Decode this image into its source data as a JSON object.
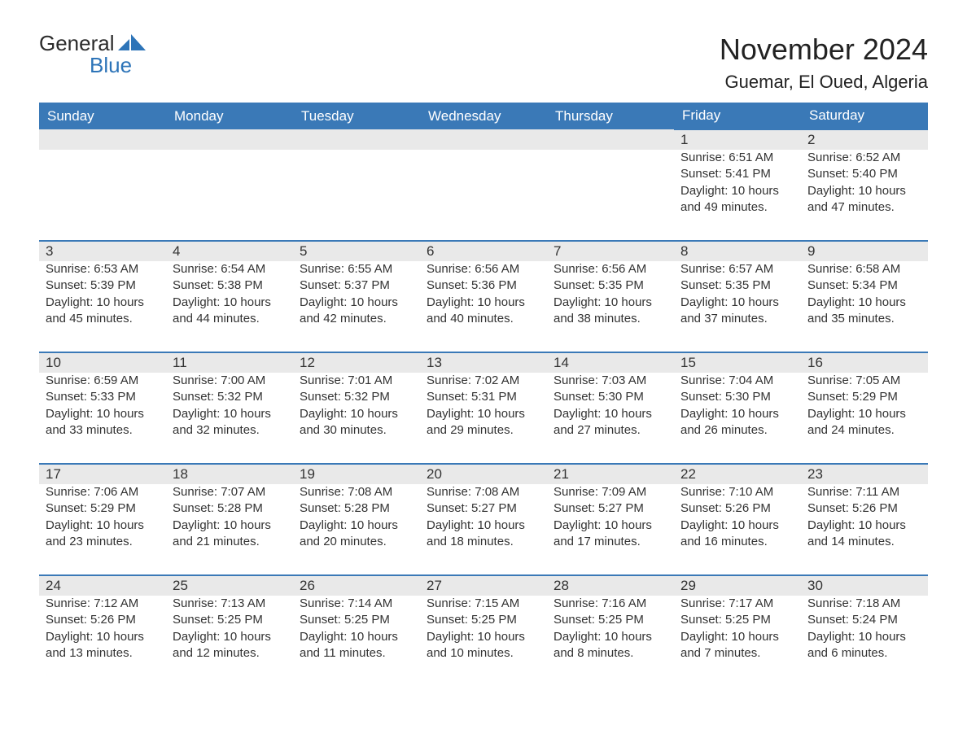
{
  "logo": {
    "text1": "General",
    "text2": "Blue",
    "mark_color": "#2d74b8"
  },
  "title": "November 2024",
  "location": "Guemar, El Oued, Algeria",
  "colors": {
    "header_bg": "#3a79b7",
    "header_text": "#ffffff",
    "daynum_bg": "#e9e9e9",
    "row_divider": "#3a79b7",
    "body_text": "#333333",
    "background": "#ffffff"
  },
  "typography": {
    "title_fontsize": 36,
    "location_fontsize": 22,
    "weekday_fontsize": 17,
    "daynum_fontsize": 17,
    "cell_fontsize": 15
  },
  "weekdays": [
    "Sunday",
    "Monday",
    "Tuesday",
    "Wednesday",
    "Thursday",
    "Friday",
    "Saturday"
  ],
  "weeks": [
    [
      null,
      null,
      null,
      null,
      null,
      {
        "day": 1,
        "sunrise": "6:51 AM",
        "sunset": "5:41 PM",
        "daylight": "10 hours and 49 minutes."
      },
      {
        "day": 2,
        "sunrise": "6:52 AM",
        "sunset": "5:40 PM",
        "daylight": "10 hours and 47 minutes."
      }
    ],
    [
      {
        "day": 3,
        "sunrise": "6:53 AM",
        "sunset": "5:39 PM",
        "daylight": "10 hours and 45 minutes."
      },
      {
        "day": 4,
        "sunrise": "6:54 AM",
        "sunset": "5:38 PM",
        "daylight": "10 hours and 44 minutes."
      },
      {
        "day": 5,
        "sunrise": "6:55 AM",
        "sunset": "5:37 PM",
        "daylight": "10 hours and 42 minutes."
      },
      {
        "day": 6,
        "sunrise": "6:56 AM",
        "sunset": "5:36 PM",
        "daylight": "10 hours and 40 minutes."
      },
      {
        "day": 7,
        "sunrise": "6:56 AM",
        "sunset": "5:35 PM",
        "daylight": "10 hours and 38 minutes."
      },
      {
        "day": 8,
        "sunrise": "6:57 AM",
        "sunset": "5:35 PM",
        "daylight": "10 hours and 37 minutes."
      },
      {
        "day": 9,
        "sunrise": "6:58 AM",
        "sunset": "5:34 PM",
        "daylight": "10 hours and 35 minutes."
      }
    ],
    [
      {
        "day": 10,
        "sunrise": "6:59 AM",
        "sunset": "5:33 PM",
        "daylight": "10 hours and 33 minutes."
      },
      {
        "day": 11,
        "sunrise": "7:00 AM",
        "sunset": "5:32 PM",
        "daylight": "10 hours and 32 minutes."
      },
      {
        "day": 12,
        "sunrise": "7:01 AM",
        "sunset": "5:32 PM",
        "daylight": "10 hours and 30 minutes."
      },
      {
        "day": 13,
        "sunrise": "7:02 AM",
        "sunset": "5:31 PM",
        "daylight": "10 hours and 29 minutes."
      },
      {
        "day": 14,
        "sunrise": "7:03 AM",
        "sunset": "5:30 PM",
        "daylight": "10 hours and 27 minutes."
      },
      {
        "day": 15,
        "sunrise": "7:04 AM",
        "sunset": "5:30 PM",
        "daylight": "10 hours and 26 minutes."
      },
      {
        "day": 16,
        "sunrise": "7:05 AM",
        "sunset": "5:29 PM",
        "daylight": "10 hours and 24 minutes."
      }
    ],
    [
      {
        "day": 17,
        "sunrise": "7:06 AM",
        "sunset": "5:29 PM",
        "daylight": "10 hours and 23 minutes."
      },
      {
        "day": 18,
        "sunrise": "7:07 AM",
        "sunset": "5:28 PM",
        "daylight": "10 hours and 21 minutes."
      },
      {
        "day": 19,
        "sunrise": "7:08 AM",
        "sunset": "5:28 PM",
        "daylight": "10 hours and 20 minutes."
      },
      {
        "day": 20,
        "sunrise": "7:08 AM",
        "sunset": "5:27 PM",
        "daylight": "10 hours and 18 minutes."
      },
      {
        "day": 21,
        "sunrise": "7:09 AM",
        "sunset": "5:27 PM",
        "daylight": "10 hours and 17 minutes."
      },
      {
        "day": 22,
        "sunrise": "7:10 AM",
        "sunset": "5:26 PM",
        "daylight": "10 hours and 16 minutes."
      },
      {
        "day": 23,
        "sunrise": "7:11 AM",
        "sunset": "5:26 PM",
        "daylight": "10 hours and 14 minutes."
      }
    ],
    [
      {
        "day": 24,
        "sunrise": "7:12 AM",
        "sunset": "5:26 PM",
        "daylight": "10 hours and 13 minutes."
      },
      {
        "day": 25,
        "sunrise": "7:13 AM",
        "sunset": "5:25 PM",
        "daylight": "10 hours and 12 minutes."
      },
      {
        "day": 26,
        "sunrise": "7:14 AM",
        "sunset": "5:25 PM",
        "daylight": "10 hours and 11 minutes."
      },
      {
        "day": 27,
        "sunrise": "7:15 AM",
        "sunset": "5:25 PM",
        "daylight": "10 hours and 10 minutes."
      },
      {
        "day": 28,
        "sunrise": "7:16 AM",
        "sunset": "5:25 PM",
        "daylight": "10 hours and 8 minutes."
      },
      {
        "day": 29,
        "sunrise": "7:17 AM",
        "sunset": "5:25 PM",
        "daylight": "10 hours and 7 minutes."
      },
      {
        "day": 30,
        "sunrise": "7:18 AM",
        "sunset": "5:24 PM",
        "daylight": "10 hours and 6 minutes."
      }
    ]
  ],
  "labels": {
    "sunrise": "Sunrise:",
    "sunset": "Sunset:",
    "daylight": "Daylight:"
  }
}
